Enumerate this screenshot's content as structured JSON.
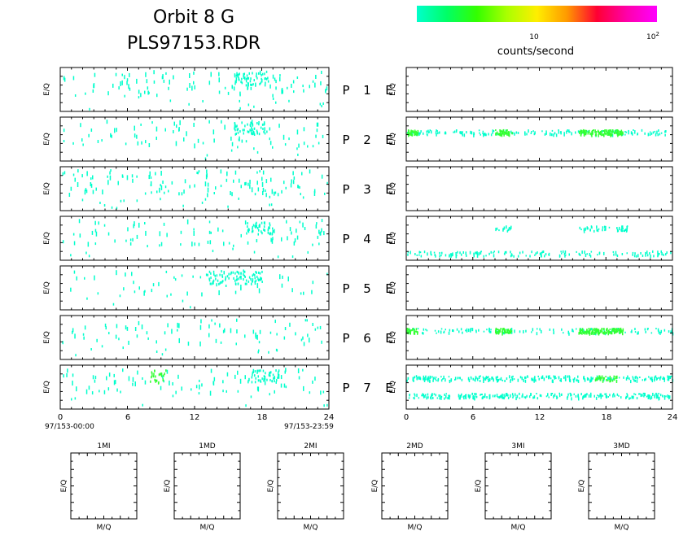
{
  "header": {
    "title_line1": "Orbit 8 G",
    "title_line2": "PLS97153.RDR"
  },
  "colorbar": {
    "label": "counts/second",
    "tick_10": "10",
    "tick_100_base": "10",
    "tick_100_exp": "2",
    "colors": [
      "#00ffcc",
      "#00ff66",
      "#33ff00",
      "#aaff00",
      "#ffee00",
      "#ff9900",
      "#ff0033",
      "#ff00aa",
      "#ff00ff"
    ]
  },
  "panel_rows": [
    {
      "p_label": "P",
      "num": "1",
      "e_label": "E"
    },
    {
      "p_label": "P",
      "num": "2",
      "e_label": "E"
    },
    {
      "p_label": "P",
      "num": "3",
      "e_label": "E"
    },
    {
      "p_label": "P",
      "num": "4",
      "e_label": "E"
    },
    {
      "p_label": "P",
      "num": "5",
      "e_label": "E"
    },
    {
      "p_label": "P",
      "num": "6",
      "e_label": "E"
    },
    {
      "p_label": "P",
      "num": "7",
      "e_label": "E"
    }
  ],
  "axis": {
    "ylabel": "E/Q",
    "x_ticks": [
      "0",
      "6",
      "12",
      "18",
      "24"
    ],
    "start_label": "97/153-00:00",
    "end_label": "97/153-23:59"
  },
  "bottom_panels": [
    {
      "title": "1MI",
      "ylabel": "E/Q",
      "xlabel": "M/Q"
    },
    {
      "title": "1MD",
      "ylabel": "E/Q",
      "xlabel": "M/Q"
    },
    {
      "title": "2MI",
      "ylabel": "E/Q",
      "xlabel": "M/Q"
    },
    {
      "title": "2MD",
      "ylabel": "E/Q",
      "xlabel": "M/Q"
    },
    {
      "title": "3MI",
      "ylabel": "E/Q",
      "xlabel": "M/Q"
    },
    {
      "title": "3MD",
      "ylabel": "E/Q",
      "xlabel": "M/Q"
    }
  ],
  "chart_data": {
    "type": "heatmap",
    "x_range": [
      0,
      24
    ],
    "x_unit": "hours",
    "colors": {
      "low": "#00ffcc",
      "mid": "#33ff33"
    },
    "left_panels": [
      {
        "panel": "1",
        "density": 0.75,
        "clusters": [
          {
            "x": [
              15.5,
              18.5
            ],
            "level": "low"
          }
        ]
      },
      {
        "panel": "2",
        "density": 0.55,
        "clusters": [
          {
            "x": [
              15.5,
              18.5
            ],
            "level": "low"
          }
        ]
      },
      {
        "panel": "3",
        "density": 0.9,
        "clusters": []
      },
      {
        "panel": "4",
        "density": 0.6,
        "clusters": [
          {
            "x": [
              16.5,
              19.0
            ],
            "level": "low"
          }
        ]
      },
      {
        "panel": "5",
        "density": 0.35,
        "clusters": [
          {
            "x": [
              13.0,
              18.0
            ],
            "level": "low"
          }
        ]
      },
      {
        "panel": "6",
        "density": 0.55,
        "clusters": []
      },
      {
        "panel": "7",
        "density": 0.6,
        "clusters": [
          {
            "x": [
              8.0,
              9.5
            ],
            "level": "mid"
          },
          {
            "x": [
              17.0,
              19.5
            ],
            "level": "low"
          }
        ]
      }
    ],
    "right_panels": [
      {
        "panel": "1",
        "bands": []
      },
      {
        "panel": "2",
        "bands": [
          {
            "y": 0.35,
            "x": [
              0,
              24
            ],
            "level": "low",
            "density": 0.55
          },
          {
            "y": 0.35,
            "x": [
              0.0,
              1.0
            ],
            "level": "mid",
            "density": 1.0
          },
          {
            "y": 0.35,
            "x": [
              8.0,
              9.5
            ],
            "level": "mid",
            "density": 1.0
          },
          {
            "y": 0.35,
            "x": [
              15.5,
              19.5
            ],
            "level": "mid",
            "density": 1.0
          }
        ]
      },
      {
        "panel": "3",
        "bands": []
      },
      {
        "panel": "4",
        "bands": [
          {
            "y": 0.28,
            "x": [
              8.0,
              9.5
            ],
            "level": "low",
            "density": 0.7
          },
          {
            "y": 0.28,
            "x": [
              15.5,
              20.0
            ],
            "level": "low",
            "density": 0.8
          },
          {
            "y": 0.85,
            "x": [
              0,
              24
            ],
            "level": "low",
            "density": 0.5
          }
        ]
      },
      {
        "panel": "5",
        "bands": []
      },
      {
        "panel": "6",
        "bands": [
          {
            "y": 0.35,
            "x": [
              0,
              24
            ],
            "level": "low",
            "density": 0.45
          },
          {
            "y": 0.35,
            "x": [
              0.0,
              1.0
            ],
            "level": "mid",
            "density": 1.0
          },
          {
            "y": 0.35,
            "x": [
              8.0,
              9.5
            ],
            "level": "mid",
            "density": 1.0
          },
          {
            "y": 0.35,
            "x": [
              15.5,
              19.5
            ],
            "level": "mid",
            "density": 1.0
          }
        ]
      },
      {
        "panel": "7",
        "bands": [
          {
            "y": 0.3,
            "x": [
              0,
              24
            ],
            "level": "low",
            "density": 0.85
          },
          {
            "y": 0.7,
            "x": [
              0,
              24
            ],
            "level": "low",
            "density": 0.85
          },
          {
            "y": 0.3,
            "x": [
              17.0,
              19.0
            ],
            "level": "mid",
            "density": 0.6
          }
        ]
      }
    ]
  }
}
